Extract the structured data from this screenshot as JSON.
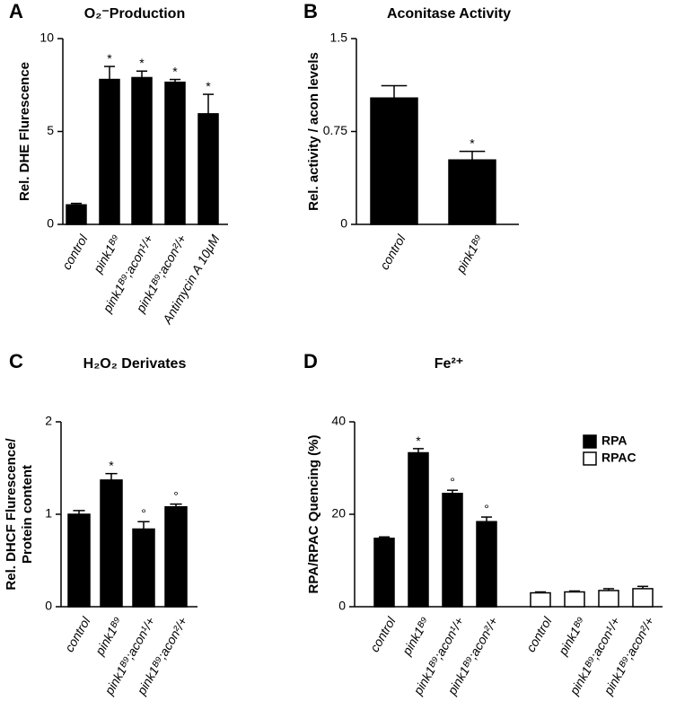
{
  "chart_data": [
    {
      "type": "bar",
      "panel_label": "A",
      "title": "O₂⁻Production",
      "ylabel": [
        "Rel. DHE Flurescence"
      ],
      "categories": [
        "control",
        "pink1ᴮ⁹",
        "pink1ᴮ⁹;acon¹/+",
        "pink1ᴮ⁹;acon²/+",
        "Antimycin A 10μM"
      ],
      "series": [
        {
          "name": null,
          "color": "#000000",
          "values": [
            1.05,
            7.8,
            7.9,
            7.65,
            5.95
          ],
          "errors": [
            0.08,
            0.7,
            0.35,
            0.15,
            1.05
          ],
          "markers": [
            null,
            "*",
            "*",
            "*",
            "*"
          ]
        }
      ],
      "ylim": [
        0,
        10
      ],
      "yticks": [
        0,
        5,
        10
      ]
    },
    {
      "type": "bar",
      "panel_label": "B",
      "title": "Aconitase Activity",
      "ylabel": [
        "Rel. activity / acon levels"
      ],
      "categories": [
        "control",
        "pink1ᴮ⁹"
      ],
      "series": [
        {
          "name": null,
          "color": "#000000",
          "values": [
            1.02,
            0.52
          ],
          "errors": [
            0.1,
            0.07
          ],
          "markers": [
            null,
            "*"
          ]
        }
      ],
      "ylim": [
        0,
        1.5
      ],
      "yticks": [
        0,
        0.75,
        1.5
      ]
    },
    {
      "type": "bar",
      "panel_label": "C",
      "title": "H₂O₂ Derivates",
      "ylabel": [
        "Rel. DHCF Flurescence/",
        "Protein content"
      ],
      "categories": [
        "control",
        "pink1ᴮ⁹",
        "pink1ᴮ⁹;acon¹/+",
        "pink1ᴮ⁹;acon²/+"
      ],
      "series": [
        {
          "name": null,
          "color": "#000000",
          "values": [
            1.0,
            1.37,
            0.84,
            1.08
          ],
          "errors": [
            0.04,
            0.07,
            0.08,
            0.03
          ],
          "markers": [
            null,
            "*",
            "°",
            "°"
          ]
        }
      ],
      "ylim": [
        0,
        2
      ],
      "yticks": [
        0,
        1,
        2
      ]
    },
    {
      "type": "bar",
      "panel_label": "D",
      "title": "Fe²⁺",
      "ylabel": [
        "RPA/RPAC Quencing (%)"
      ],
      "categories": [
        "control",
        "pink1ᴮ⁹",
        "pink1ᴮ⁹;acon¹/+",
        "pink1ᴮ⁹;acon²/+"
      ],
      "series": [
        {
          "name": "RPA",
          "color": "#000000",
          "values": [
            14.8,
            33.3,
            24.5,
            18.4
          ],
          "errors": [
            0.3,
            0.9,
            0.7,
            1.0
          ],
          "markers": [
            null,
            "*",
            "°",
            "°"
          ]
        },
        {
          "name": "RPAC",
          "color": "#ffffff",
          "values": [
            3.0,
            3.2,
            3.5,
            3.9
          ],
          "errors": [
            0.2,
            0.2,
            0.4,
            0.5
          ],
          "markers": [
            null,
            null,
            null,
            null
          ]
        }
      ],
      "ylim": [
        0,
        40
      ],
      "yticks": [
        0,
        20,
        40
      ],
      "legend": "top-right"
    }
  ]
}
